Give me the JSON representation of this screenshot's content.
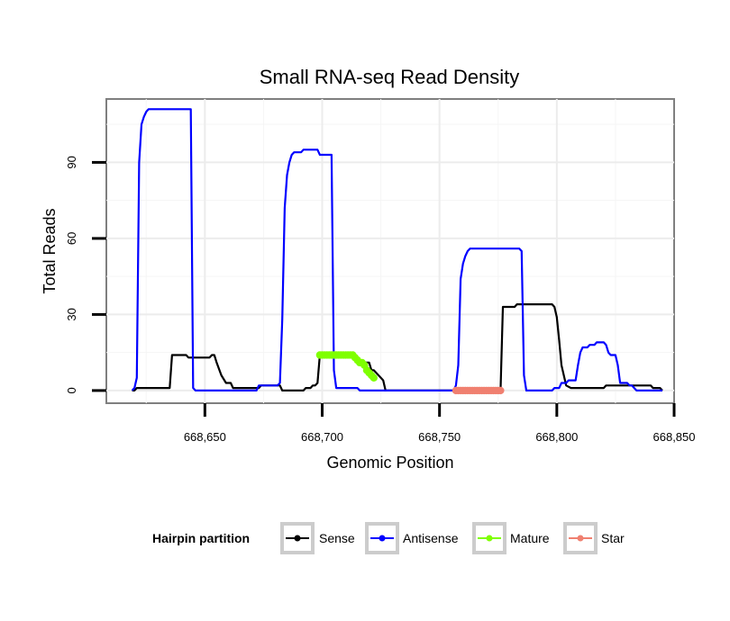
{
  "chart_data": {
    "type": "line",
    "title": "Small RNA-seq Read Density",
    "xlabel": "Genomic Position",
    "ylabel": "Total Reads",
    "xlim": [
      668608,
      668850
    ],
    "ylim": [
      -5,
      115
    ],
    "x_ticks": [
      {
        "value": 668650,
        "label": "668,650"
      },
      {
        "value": 668700,
        "label": "668,700"
      },
      {
        "value": 668750,
        "label": "668,750"
      },
      {
        "value": 668800,
        "label": "668,800"
      },
      {
        "value": 668850,
        "label": "668,850"
      }
    ],
    "y_ticks": [
      {
        "value": 0,
        "label": "0"
      },
      {
        "value": 30,
        "label": "30"
      },
      {
        "value": 60,
        "label": "60"
      },
      {
        "value": 90,
        "label": "90"
      }
    ],
    "grid": true,
    "legend": {
      "title": "Hairpin partition",
      "placement": "bottom"
    },
    "series": [
      {
        "name": "Sense",
        "color": "#000000",
        "marker": false,
        "points": [
          [
            668619,
            0
          ],
          [
            668620,
            0
          ],
          [
            668621,
            1
          ],
          [
            668622,
            1
          ],
          [
            668626,
            1
          ],
          [
            668632,
            1
          ],
          [
            668635,
            1
          ],
          [
            668636,
            14
          ],
          [
            668640,
            14
          ],
          [
            668642,
            14
          ],
          [
            668643,
            13
          ],
          [
            668647,
            13
          ],
          [
            668652,
            13
          ],
          [
            668653,
            14
          ],
          [
            668654,
            14
          ],
          [
            668655,
            11
          ],
          [
            668657,
            6
          ],
          [
            668659,
            3
          ],
          [
            668661,
            3
          ],
          [
            668662,
            1
          ],
          [
            668668,
            1
          ],
          [
            668673,
            1
          ],
          [
            668674,
            2
          ],
          [
            668680,
            2
          ],
          [
            668682,
            2
          ],
          [
            668683,
            0
          ],
          [
            668690,
            0
          ],
          [
            668692,
            0
          ],
          [
            668693,
            1
          ],
          [
            668695,
            1
          ],
          [
            668696,
            2
          ],
          [
            668697,
            2
          ],
          [
            668698,
            3
          ],
          [
            668699,
            14
          ],
          [
            668712,
            14
          ],
          [
            668714,
            12
          ],
          [
            668716,
            12
          ],
          [
            668718,
            11
          ],
          [
            668720,
            11
          ],
          [
            668721,
            8
          ],
          [
            668722,
            8
          ],
          [
            668724,
            6
          ],
          [
            668725,
            5
          ],
          [
            668726,
            4
          ],
          [
            668727,
            0
          ],
          [
            668760,
            0
          ],
          [
            668775,
            0
          ],
          [
            668776,
            0
          ],
          [
            668777,
            33
          ],
          [
            668782,
            33
          ],
          [
            668783,
            34
          ],
          [
            668785,
            34
          ],
          [
            668798,
            34
          ],
          [
            668799,
            33
          ],
          [
            668800,
            29
          ],
          [
            668801,
            20
          ],
          [
            668802,
            10
          ],
          [
            668803,
            6
          ],
          [
            668804,
            2
          ],
          [
            668806,
            1
          ],
          [
            668808,
            1
          ],
          [
            668815,
            1
          ],
          [
            668820,
            1
          ],
          [
            668821,
            2
          ],
          [
            668825,
            2
          ],
          [
            668835,
            2
          ],
          [
            668840,
            2
          ],
          [
            668841,
            1
          ],
          [
            668844,
            1
          ],
          [
            668845,
            0
          ]
        ]
      },
      {
        "name": "Antisense",
        "color": "#0000ff",
        "marker": false,
        "points": [
          [
            668619,
            0
          ],
          [
            668620,
            1
          ],
          [
            668621,
            5
          ],
          [
            668622,
            90
          ],
          [
            668623,
            105
          ],
          [
            668624,
            108
          ],
          [
            668625,
            110
          ],
          [
            668626,
            111
          ],
          [
            668633,
            111
          ],
          [
            668643,
            111
          ],
          [
            668644,
            111
          ],
          [
            668645,
            1
          ],
          [
            668646,
            0
          ],
          [
            668672,
            0
          ],
          [
            668673,
            2
          ],
          [
            668680,
            2
          ],
          [
            668681,
            2
          ],
          [
            668682,
            3
          ],
          [
            668683,
            28
          ],
          [
            668684,
            72
          ],
          [
            668685,
            85
          ],
          [
            668686,
            90
          ],
          [
            668687,
            93
          ],
          [
            668688,
            94
          ],
          [
            668691,
            94
          ],
          [
            668692,
            95
          ],
          [
            668698,
            95
          ],
          [
            668699,
            93
          ],
          [
            668704,
            93
          ],
          [
            668705,
            8
          ],
          [
            668706,
            1
          ],
          [
            668715,
            1
          ],
          [
            668716,
            0
          ],
          [
            668756,
            0
          ],
          [
            668757,
            2
          ],
          [
            668758,
            10
          ],
          [
            668759,
            44
          ],
          [
            668760,
            50
          ],
          [
            668761,
            53
          ],
          [
            668762,
            55
          ],
          [
            668763,
            56
          ],
          [
            668773,
            56
          ],
          [
            668784,
            56
          ],
          [
            668785,
            55
          ],
          [
            668786,
            6
          ],
          [
            668787,
            0
          ],
          [
            668798,
            0
          ],
          [
            668799,
            1
          ],
          [
            668801,
            1
          ],
          [
            668802,
            3
          ],
          [
            668804,
            3
          ],
          [
            668805,
            4
          ],
          [
            668808,
            4
          ],
          [
            668809,
            10
          ],
          [
            668810,
            15
          ],
          [
            668811,
            17
          ],
          [
            668813,
            17
          ],
          [
            668814,
            18
          ],
          [
            668816,
            18
          ],
          [
            668817,
            19
          ],
          [
            668820,
            19
          ],
          [
            668821,
            18
          ],
          [
            668822,
            15
          ],
          [
            668823,
            14
          ],
          [
            668825,
            14
          ],
          [
            668826,
            10
          ],
          [
            668827,
            3
          ],
          [
            668830,
            3
          ],
          [
            668831,
            2
          ],
          [
            668832,
            2
          ],
          [
            668833,
            1
          ],
          [
            668834,
            0
          ],
          [
            668845,
            0
          ]
        ]
      },
      {
        "name": "Mature",
        "color": "#7fff00",
        "marker": true,
        "points": [
          [
            668699,
            14
          ],
          [
            668700,
            14
          ],
          [
            668701,
            14
          ],
          [
            668702,
            14
          ],
          [
            668703,
            14
          ],
          [
            668704,
            14
          ],
          [
            668705,
            14
          ],
          [
            668706,
            14
          ],
          [
            668707,
            14
          ],
          [
            668708,
            14
          ],
          [
            668709,
            14
          ],
          [
            668710,
            14
          ],
          [
            668711,
            14
          ],
          [
            668712,
            14
          ],
          [
            668713,
            14
          ],
          [
            668714,
            13
          ],
          [
            668715,
            12
          ],
          [
            668716,
            11
          ],
          [
            668717,
            11
          ],
          [
            668718,
            10
          ],
          [
            668719,
            8
          ],
          [
            668720,
            7
          ],
          [
            668721,
            6
          ],
          [
            668722,
            5
          ]
        ]
      },
      {
        "name": "Star",
        "color": "#f08070",
        "marker": true,
        "points": [
          [
            668757,
            0
          ],
          [
            668758,
            0
          ],
          [
            668759,
            0
          ],
          [
            668760,
            0
          ],
          [
            668761,
            0
          ],
          [
            668762,
            0
          ],
          [
            668763,
            0
          ],
          [
            668764,
            0
          ],
          [
            668765,
            0
          ],
          [
            668766,
            0
          ],
          [
            668767,
            0
          ],
          [
            668768,
            0
          ],
          [
            668769,
            0
          ],
          [
            668770,
            0
          ],
          [
            668771,
            0
          ],
          [
            668772,
            0
          ],
          [
            668773,
            0
          ],
          [
            668774,
            0
          ],
          [
            668775,
            0
          ],
          [
            668776,
            0
          ]
        ]
      }
    ]
  }
}
